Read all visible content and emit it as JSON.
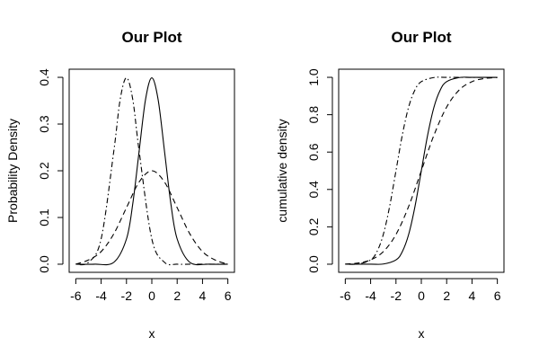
{
  "chart_data": [
    {
      "type": "line",
      "title": "Our Plot",
      "xlabel": "x",
      "ylabel": "Probability Density",
      "xlim": [
        -6,
        6
      ],
      "ylim": [
        0,
        0.4
      ],
      "xticks": [
        -6,
        -4,
        -2,
        0,
        2,
        4,
        6
      ],
      "xtick_labels": [
        "-6",
        "-4",
        "-2",
        "0",
        "2",
        "4",
        "6"
      ],
      "yticks": [
        0,
        0.1,
        0.2,
        0.3,
        0.4
      ],
      "ytick_labels": [
        "0.0",
        "0.1",
        "0.2",
        "0.3",
        "0.4"
      ],
      "grid": false,
      "series": [
        {
          "x": [
            -6,
            -4.5,
            -3,
            -2,
            -1.5,
            -1,
            -0.5,
            0,
            0.5,
            1,
            1.5,
            2,
            3,
            4.5,
            6
          ],
          "values": [
            0.0,
            0.0,
            0.004,
            0.054,
            0.13,
            0.242,
            0.352,
            0.399,
            0.352,
            0.242,
            0.13,
            0.054,
            0.004,
            0.0,
            0.0
          ],
          "style": "solid"
        },
        {
          "x": [
            -6,
            -5,
            -4,
            -3,
            -2,
            -1,
            0,
            1,
            2,
            3,
            4,
            5,
            6
          ],
          "values": [
            0.0,
            0.009,
            0.027,
            0.065,
            0.121,
            0.176,
            0.2,
            0.176,
            0.121,
            0.065,
            0.027,
            0.009,
            0.0
          ],
          "style": "dashed"
        },
        {
          "x": [
            -6,
            -5,
            -4,
            -3,
            -2.5,
            -2,
            -1.5,
            -1,
            0,
            1,
            2,
            3,
            4,
            6
          ],
          "values": [
            0.0,
            0.004,
            0.054,
            0.242,
            0.352,
            0.399,
            0.352,
            0.242,
            0.054,
            0.004,
            0.0,
            0.0,
            0.0,
            0.0
          ],
          "style": "dotdash"
        }
      ]
    },
    {
      "type": "line",
      "title": "Our Plot",
      "xlabel": "x",
      "ylabel": "cumulative density",
      "xlim": [
        -6,
        6
      ],
      "ylim": [
        0,
        1
      ],
      "xticks": [
        -6,
        -4,
        -2,
        0,
        2,
        4,
        6
      ],
      "xtick_labels": [
        "-6",
        "-4",
        "-2",
        "0",
        "2",
        "4",
        "6"
      ],
      "yticks": [
        0,
        0.2,
        0.4,
        0.6,
        0.8,
        1.0
      ],
      "ytick_labels": [
        "0.0",
        "0.2",
        "0.4",
        "0.6",
        "0.8",
        "1.0"
      ],
      "grid": false,
      "series": [
        {
          "x": [
            -6,
            -4,
            -3,
            -2,
            -1.5,
            -1,
            -0.5,
            0,
            0.5,
            1,
            1.5,
            2,
            3,
            4,
            6
          ],
          "values": [
            0.0,
            0.0,
            0.001,
            0.023,
            0.067,
            0.159,
            0.309,
            0.5,
            0.691,
            0.841,
            0.933,
            0.977,
            0.999,
            1.0,
            1.0
          ],
          "style": "solid"
        },
        {
          "x": [
            -6,
            -5,
            -4,
            -3,
            -2,
            -1,
            0,
            1,
            2,
            3,
            4,
            5,
            6
          ],
          "values": [
            0.001,
            0.006,
            0.023,
            0.067,
            0.159,
            0.309,
            0.5,
            0.691,
            0.841,
            0.933,
            0.977,
            0.994,
            0.999
          ],
          "style": "dashed"
        },
        {
          "x": [
            -6,
            -5,
            -4,
            -3.5,
            -3,
            -2.5,
            -2,
            -1.5,
            -1,
            -0.5,
            0,
            1,
            2,
            4,
            6
          ],
          "values": [
            0.0,
            0.001,
            0.023,
            0.067,
            0.159,
            0.309,
            0.5,
            0.691,
            0.841,
            0.933,
            0.977,
            0.999,
            1.0,
            1.0,
            1.0
          ],
          "style": "dotdash"
        }
      ]
    }
  ]
}
